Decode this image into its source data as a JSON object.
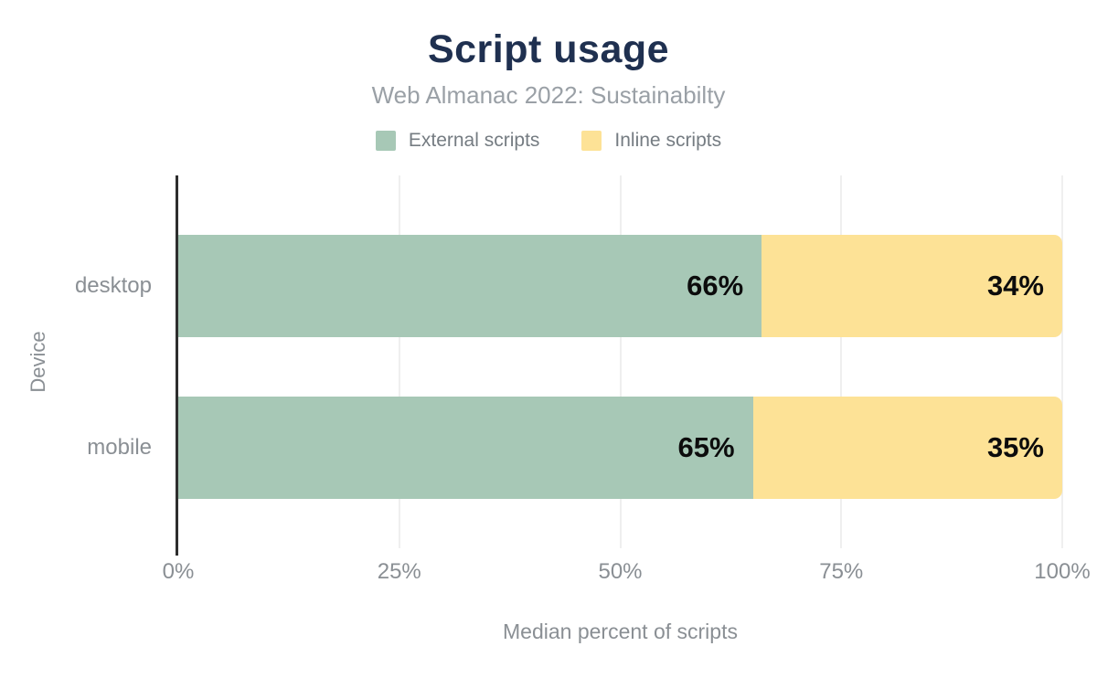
{
  "header": {
    "title": "Script usage",
    "subtitle": "Web Almanac 2022: Sustainabilty"
  },
  "chart_data": {
    "type": "bar",
    "orientation": "horizontal",
    "stacked": true,
    "title": "Script usage",
    "subtitle": "Web Almanac 2022: Sustainabilty",
    "categories": [
      "desktop",
      "mobile"
    ],
    "series": [
      {
        "name": "External scripts",
        "color": "#a7c8b6",
        "values": [
          66,
          65
        ]
      },
      {
        "name": "Inline scripts",
        "color": "#fde296",
        "values": [
          34,
          35
        ]
      }
    ],
    "value_suffix": "%",
    "xlabel": "Median percent of scripts",
    "ylabel": "Device",
    "xlim": [
      0,
      100
    ],
    "xticks": [
      {
        "value": 0,
        "label": "0%"
      },
      {
        "value": 25,
        "label": "25%"
      },
      {
        "value": 50,
        "label": "50%"
      },
      {
        "value": 75,
        "label": "75%"
      },
      {
        "value": 100,
        "label": "100%"
      }
    ],
    "legend_position": "top",
    "grid": "vertical",
    "colors": {
      "title": "#1f3050",
      "subtitle_text": "#9aa0a6",
      "axis_text": "#8a8f94",
      "data_label": "#0c0c0c",
      "gridline": "#efefef",
      "axis_line": "#2e2e2e",
      "background": "#ffffff"
    }
  }
}
